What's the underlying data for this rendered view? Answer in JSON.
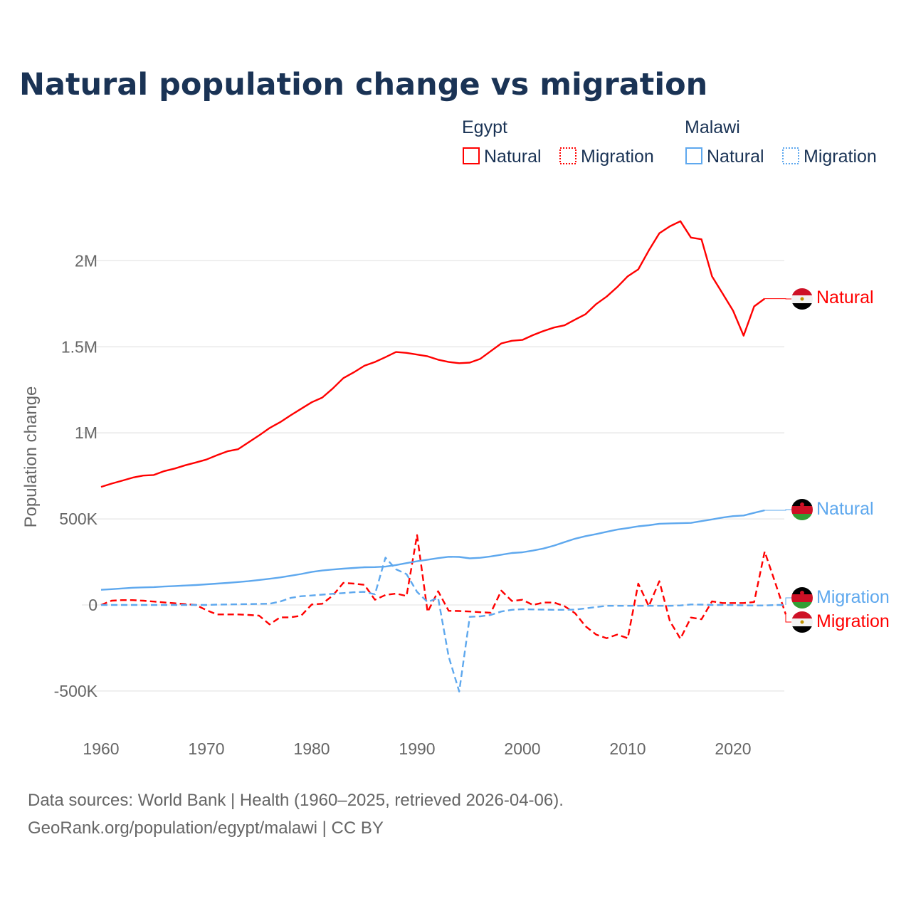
{
  "chart_data": {
    "type": "line",
    "title": "Natural population change vs migration",
    "ylabel": "Population change",
    "xlabel": "",
    "unit": "thousands",
    "xlim": [
      1960,
      2025
    ],
    "ylim": [
      -700,
      2400
    ],
    "grid": true,
    "x_ticks": [
      1960,
      1970,
      1980,
      1990,
      2000,
      2010,
      2020
    ],
    "x_tick_labels": [
      "1960",
      "1970",
      "1980",
      "1990",
      "2000",
      "2010",
      "2020"
    ],
    "y_ticks": [
      -500,
      0,
      500,
      1000,
      1500,
      2000
    ],
    "y_tick_labels": [
      "-500K",
      "0",
      "500K",
      "1M",
      "1.5M",
      "2M"
    ],
    "legend": {
      "placement": "top-right",
      "groups": [
        {
          "name": "Egypt",
          "items": [
            "Natural",
            "Migration"
          ]
        },
        {
          "name": "Malawi",
          "items": [
            "Natural",
            "Migration"
          ]
        }
      ]
    },
    "series": [
      {
        "name": "Egypt Natural",
        "country": "Egypt",
        "kind": "Natural",
        "label": "Natural",
        "color": "#ff0000",
        "dash": false,
        "start": 1960,
        "values": [
          686,
          705,
          722,
          740,
          752,
          755,
          778,
          793,
          812,
          828,
          845,
          870,
          893,
          905,
          945,
          985,
          1028,
          1062,
          1102,
          1140,
          1178,
          1205,
          1258,
          1318,
          1352,
          1390,
          1412,
          1440,
          1470,
          1465,
          1455,
          1445,
          1425,
          1412,
          1405,
          1408,
          1430,
          1475,
          1520,
          1535,
          1540,
          1568,
          1592,
          1612,
          1625,
          1658,
          1690,
          1748,
          1792,
          1847,
          1910,
          1950,
          2060,
          2160,
          2200,
          2230,
          2135,
          2125,
          1910,
          1810,
          1710,
          1565,
          1735,
          1780
        ]
      },
      {
        "name": "Egypt Migration",
        "country": "Egypt",
        "kind": "Migration",
        "label": "Migration",
        "color": "#ff0000",
        "dash": true,
        "start": 1960,
        "values": [
          0,
          25,
          28,
          28,
          25,
          20,
          15,
          10,
          5,
          0,
          -30,
          -55,
          -55,
          -55,
          -58,
          -62,
          -113,
          -72,
          -72,
          -62,
          3,
          7,
          55,
          128,
          124,
          117,
          30,
          58,
          66,
          52,
          406,
          -41,
          80,
          -34,
          -35,
          -38,
          -42,
          -45,
          83,
          23,
          30,
          0,
          14,
          14,
          -7,
          -48,
          -124,
          -172,
          -193,
          -172,
          -193,
          124,
          -7,
          138,
          -94,
          -196,
          -73,
          -83,
          21,
          11,
          11,
          11,
          17,
          310,
          130,
          -55
        ]
      },
      {
        "name": "Malawi Natural",
        "country": "Malawi",
        "kind": "Natural",
        "label": "Natural",
        "color": "#5ea8ee",
        "dash": false,
        "start": 1960,
        "values": [
          88,
          92,
          96,
          100,
          102,
          104,
          107,
          110,
          113,
          116,
          120,
          124,
          128,
          133,
          138,
          145,
          152,
          160,
          170,
          180,
          192,
          200,
          206,
          211,
          215,
          219,
          220,
          223,
          232,
          243,
          254,
          263,
          272,
          280,
          279,
          271,
          274,
          282,
          292,
          302,
          306,
          316,
          328,
          345,
          365,
          385,
          400,
          412,
          425,
          438,
          447,
          457,
          463,
          472,
          474,
          475,
          477,
          487,
          497,
          508,
          516,
          520,
          535,
          550
        ]
      },
      {
        "name": "Malawi Migration",
        "country": "Malawi",
        "kind": "Migration",
        "label": "Migration",
        "color": "#5ea8ee",
        "dash": true,
        "start": 1960,
        "values": [
          0,
          0,
          0,
          0,
          0,
          0,
          0,
          0,
          0,
          0,
          0,
          2,
          3,
          4,
          5,
          6,
          7,
          20,
          41,
          51,
          55,
          60,
          65,
          69,
          74,
          76,
          62,
          275,
          207,
          179,
          76,
          17,
          41,
          -300,
          -503,
          -69,
          -66,
          -58,
          -38,
          -28,
          -25,
          -26,
          -27,
          -28,
          -28,
          -27,
          -20,
          -12,
          -5,
          -5,
          -5,
          -5,
          -5,
          -5,
          -5,
          -3,
          3,
          2,
          0,
          0,
          -1,
          -2,
          -3,
          -3,
          0,
          0
        ]
      }
    ]
  },
  "footer": {
    "line1": "Data sources: World Bank | Health (1960–2025, retrieved 2026-04-06).",
    "line2": "GeoRank.org/population/egypt/malawi | CC BY"
  }
}
